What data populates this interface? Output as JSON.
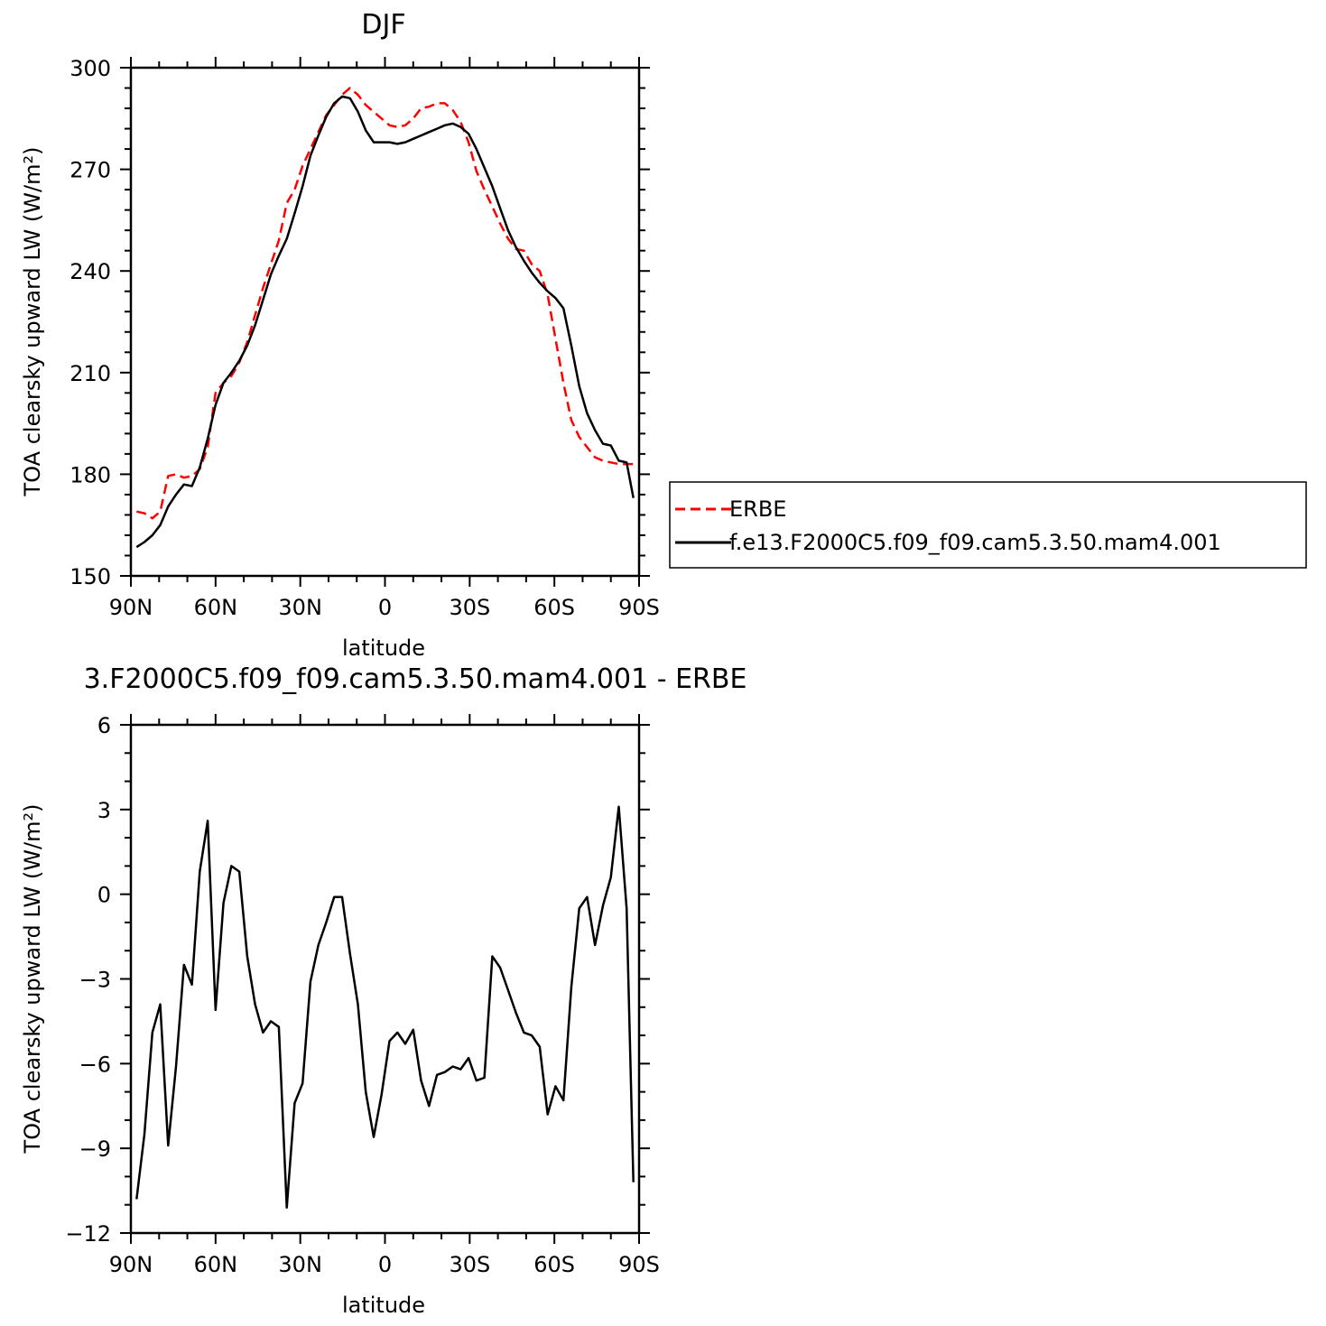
{
  "chart_data": [
    {
      "type": "line",
      "title": "DJF",
      "xlabel": "latitude",
      "ylabel": "TOA clearsky upward LW (W/m²)",
      "xlim": [
        -90,
        90
      ],
      "ylim": [
        150,
        300
      ],
      "x_ticks": [
        -90,
        -60,
        -30,
        0,
        30,
        60,
        90
      ],
      "x_tick_labels": [
        "90N",
        "60N",
        "30N",
        "0",
        "30S",
        "60S",
        "90S"
      ],
      "y_ticks": [
        150,
        180,
        210,
        240,
        270,
        300
      ],
      "y_tick_labels": [
        "150",
        "180",
        "210",
        "240",
        "270",
        "300"
      ],
      "legend_position": "right",
      "series": [
        {
          "name": "ERBE",
          "color": "#ff0000",
          "dash": "dashed",
          "x": [
            -88,
            -85.2,
            -82.4,
            -79.6,
            -76.8,
            -74,
            -71.2,
            -68.4,
            -65.6,
            -62.8,
            -60,
            -57.2,
            -54.4,
            -51.6,
            -48.8,
            -46,
            -43.2,
            -40.4,
            -37.6,
            -34.8,
            -32,
            -29.2,
            -26.4,
            -23.6,
            -20.8,
            -18,
            -15.2,
            -12.4,
            -9.6,
            -6.8,
            -4,
            -1.2,
            1.6,
            4.4,
            7.2,
            10,
            12.8,
            15.6,
            18.4,
            21.2,
            24,
            26.8,
            29.6,
            32.4,
            35.2,
            38,
            40.8,
            43.6,
            46.4,
            49.2,
            52,
            54.8,
            57.6,
            60.4,
            63.2,
            66,
            68.8,
            71.6,
            74.4,
            77.2,
            80,
            82.8,
            85.6,
            88
          ],
          "y": [
            169,
            168.5,
            167,
            169,
            179.5,
            180,
            179,
            179.5,
            181.5,
            188,
            204,
            207,
            209,
            213,
            219,
            227,
            235,
            242,
            249,
            260,
            264,
            271,
            276,
            281,
            286,
            289,
            292,
            294,
            292,
            289,
            287,
            285,
            283,
            282.5,
            283,
            285,
            288,
            288.5,
            289.5,
            289.5,
            287.5,
            284,
            278,
            269.5,
            264,
            259,
            254,
            249.5,
            246.5,
            246,
            242,
            240,
            233,
            220,
            207,
            196,
            191,
            188,
            185,
            184,
            183.5,
            183,
            183,
            183
          ]
        },
        {
          "name": "f.e13.F2000C5.f09_f09.cam5.3.50.mam4.001",
          "color": "#000000",
          "dash": "solid",
          "x": [
            -88,
            -85.2,
            -82.4,
            -79.6,
            -76.8,
            -74,
            -71.2,
            -68.4,
            -65.6,
            -62.8,
            -60,
            -57.2,
            -54.4,
            -51.6,
            -48.8,
            -46,
            -43.2,
            -40.4,
            -37.6,
            -34.8,
            -32,
            -29.2,
            -26.4,
            -23.6,
            -20.8,
            -18,
            -15.2,
            -12.4,
            -9.6,
            -6.8,
            -4,
            -1.2,
            1.6,
            4.4,
            7.2,
            10,
            12.8,
            15.6,
            18.4,
            21.2,
            24,
            26.8,
            29.6,
            32.4,
            35.2,
            38,
            40.8,
            43.6,
            46.4,
            49.2,
            52,
            54.8,
            57.6,
            60.4,
            63.2,
            66,
            68.8,
            71.6,
            74.4,
            77.2,
            80,
            82.8,
            85.6,
            88
          ],
          "y": [
            158.5,
            160,
            162,
            165,
            170.5,
            174,
            177,
            176.5,
            182,
            190.5,
            200.5,
            207,
            210,
            213.5,
            218,
            224,
            231.5,
            239,
            244.5,
            249.5,
            257,
            265,
            274,
            280,
            285.5,
            289.5,
            291.5,
            291,
            287,
            281.5,
            278,
            278,
            278,
            277.5,
            278,
            279,
            280,
            281,
            282,
            283,
            283.5,
            282.5,
            280.5,
            276,
            270.5,
            265,
            258.5,
            252,
            247,
            243,
            239.5,
            236.5,
            234,
            232,
            229,
            218,
            206,
            198,
            193,
            189,
            188.5,
            184,
            183.5,
            173
          ]
        }
      ]
    },
    {
      "type": "line",
      "title": "3.F2000C5.f09_f09.cam5.3.50.mam4.001 - ERBE",
      "xlabel": "latitude",
      "ylabel": "TOA clearsky upward LW (W/m²)",
      "xlim": [
        -90,
        90
      ],
      "ylim": [
        -12,
        6
      ],
      "x_ticks": [
        -90,
        -60,
        -30,
        0,
        30,
        60,
        90
      ],
      "x_tick_labels": [
        "90N",
        "60N",
        "30N",
        "0",
        "30S",
        "60S",
        "90S"
      ],
      "y_ticks": [
        -12,
        -9,
        -6,
        -3,
        0,
        3,
        6
      ],
      "y_tick_labels": [
        "−12",
        "−9",
        "−6",
        "−3",
        "0",
        "3",
        "6"
      ],
      "series": [
        {
          "color": "#000000",
          "dash": "solid",
          "x": [
            -88,
            -85.2,
            -82.4,
            -79.6,
            -76.8,
            -74,
            -71.2,
            -68.4,
            -65.6,
            -62.8,
            -60,
            -57.2,
            -54.4,
            -51.6,
            -48.8,
            -46,
            -43.2,
            -40.4,
            -37.6,
            -34.8,
            -32,
            -29.2,
            -26.4,
            -23.6,
            -20.8,
            -18,
            -15.2,
            -12.4,
            -9.6,
            -6.8,
            -4,
            -1.2,
            1.6,
            4.4,
            7.2,
            10,
            12.8,
            15.6,
            18.4,
            21.2,
            24,
            26.8,
            29.6,
            32.4,
            35.2,
            38,
            40.8,
            43.6,
            46.4,
            49.2,
            52,
            54.8,
            57.6,
            60.4,
            63.2,
            66,
            68.8,
            71.6,
            74.4,
            77.2,
            80,
            82.8,
            85.6,
            88
          ],
          "y": [
            -10.8,
            -8.5,
            -4.9,
            -3.9,
            -8.9,
            -6.1,
            -2.5,
            -3.2,
            0.8,
            2.6,
            -4.1,
            -0.3,
            1,
            0.8,
            -2.2,
            -3.9,
            -4.9,
            -4.5,
            -4.7,
            -11.1,
            -7.4,
            -6.7,
            -3.1,
            -1.8,
            -1,
            -0.1,
            -0.1,
            -2.1,
            -3.9,
            -7,
            -8.6,
            -7.1,
            -5.2,
            -4.9,
            -5.3,
            -4.8,
            -6.6,
            -7.5,
            -6.4,
            -6.3,
            -6.1,
            -6.2,
            -5.8,
            -6.6,
            -6.5,
            -2.2,
            -2.6,
            -3.4,
            -4.2,
            -4.9,
            -5,
            -5.4,
            -7.8,
            -6.8,
            -7.3,
            -3.3,
            -0.5,
            -0.1,
            -1.8,
            -0.4,
            0.6,
            3.1,
            -0.5,
            -10.2
          ]
        }
      ]
    }
  ]
}
